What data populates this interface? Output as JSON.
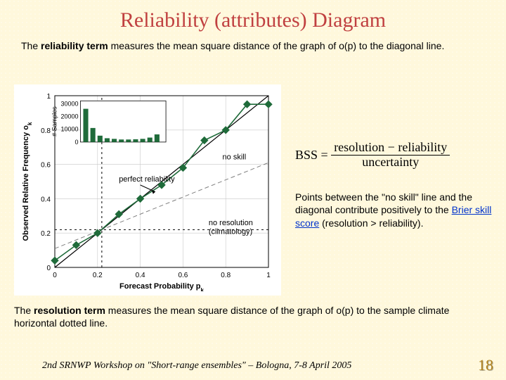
{
  "title": "Reliability (attributes) Diagram",
  "intro_pre": "The ",
  "intro_bold1": "reliability term",
  "intro_post1": " measures the mean square distance of the graph of o(p) to the diagonal line.",
  "chart": {
    "xlabel": "Forecast Probability p",
    "xlabel_sub": "k",
    "ylabel": "Observed Relative Frequency  o",
    "ylabel_sub": "k",
    "xlim": [
      0,
      1
    ],
    "ylim": [
      0,
      1
    ],
    "ticks": [
      "0",
      "0.2",
      "0.4",
      "0.6",
      "0.8",
      "1"
    ],
    "tick_pos": [
      0,
      0.2,
      0.4,
      0.6,
      0.8,
      1.0
    ],
    "grid_color": "#c8c8c8",
    "diag_color": "#000000",
    "climatology": 0.22,
    "no_skill_color": "#808080",
    "dash_color": "#000000",
    "series_color": "#1f6b3a",
    "marker_color": "#1f6b3a",
    "marker_size": 5,
    "series": {
      "x": [
        0.0,
        0.1,
        0.2,
        0.3,
        0.4,
        0.5,
        0.6,
        0.7,
        0.8,
        0.9,
        1.0
      ],
      "y": [
        0.04,
        0.13,
        0.2,
        0.31,
        0.4,
        0.48,
        0.58,
        0.74,
        0.8,
        0.95,
        0.95
      ]
    },
    "annotations": {
      "perfect": "perfect reliability",
      "noskill": "no skill",
      "nores_l1": "no resolution",
      "nores_l2": "(climatology)"
    },
    "inset": {
      "ylabel": "# Samples",
      "yticks": [
        "0",
        "10000",
        "20000",
        "30000"
      ],
      "ymax": 30000,
      "bar_color": "#1f6b3a",
      "bars": [
        26000,
        11000,
        5000,
        3000,
        2500,
        2000,
        2000,
        2200,
        2500,
        3500,
        6000
      ]
    }
  },
  "formula": {
    "lhs": "BSS =",
    "num": "resolution − reliability",
    "den": "uncertainty"
  },
  "explain_pre": "Points between the \"no skill\" line and the diagonal contribute positively to the ",
  "explain_link": "Brier skill score",
  "explain_post": " (resolution > reliability).",
  "bottom_pre": "The ",
  "bottom_bold": "resolution term",
  "bottom_post": " measures the mean square distance of the graph of o(p) to the sample climate horizontal dotted line.",
  "footer": "2nd SRNWP Workshop on \"Short-range ensembles\" – Bologna, 7-8 April 2005",
  "page": "18"
}
